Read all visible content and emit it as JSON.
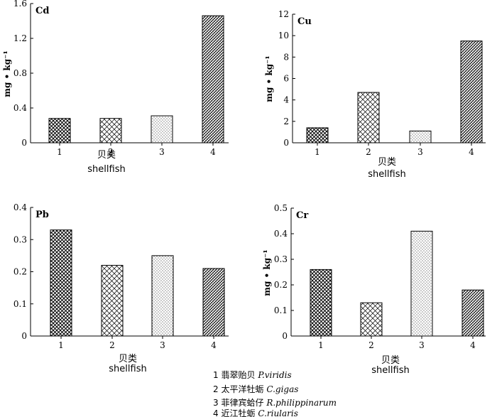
{
  "chart_data": [
    {
      "type": "bar",
      "panel_label": "Cd",
      "categories": [
        "1",
        "2",
        "3",
        "4"
      ],
      "values": [
        0.28,
        0.28,
        0.31,
        1.46
      ],
      "ylim": [
        0,
        1.6
      ],
      "yticks": [
        "0",
        "0.4",
        "0.8",
        "1.2",
        "1.6"
      ],
      "ylabel": "mg • kg⁻¹",
      "xlabel_zh": "贝类",
      "xlabel_en": "shellfish"
    },
    {
      "type": "bar",
      "panel_label": "Cu",
      "categories": [
        "1",
        "2",
        "3",
        "4"
      ],
      "values": [
        1.4,
        4.7,
        1.1,
        9.5
      ],
      "ylim": [
        0,
        12
      ],
      "yticks": [
        "0",
        "2",
        "4",
        "6",
        "8",
        "10",
        "12"
      ],
      "ylabel": "mg • kg⁻¹",
      "xlabel_zh": "贝类",
      "xlabel_en": "shellfish"
    },
    {
      "type": "bar",
      "panel_label": "Pb",
      "categories": [
        "1",
        "2",
        "3",
        "4"
      ],
      "values": [
        0.33,
        0.22,
        0.25,
        0.21
      ],
      "ylim": [
        0,
        0.4
      ],
      "yticks": [
        "0",
        "0.1",
        "0.2",
        "0.3",
        "0.4"
      ],
      "ylabel": "",
      "xlabel_zh": "贝类",
      "xlabel_en": "shellfish"
    },
    {
      "type": "bar",
      "panel_label": "Cr",
      "categories": [
        "1",
        "2",
        "3",
        "4"
      ],
      "values": [
        0.26,
        0.13,
        0.41,
        0.18
      ],
      "ylim": [
        0,
        0.5
      ],
      "yticks": [
        "0",
        "0.1",
        "0.2",
        "0.3",
        "0.4",
        "0.5"
      ],
      "ylabel": "mg • kg⁻¹",
      "xlabel_zh": "贝类",
      "xlabel_en": "shellfish"
    }
  ],
  "legend": [
    {
      "num": "1",
      "zh": "翡翠贻贝",
      "latin": "P.viridis"
    },
    {
      "num": "2",
      "zh": "太平洋牡蛎",
      "latin": "C.gigas"
    },
    {
      "num": "3",
      "zh": "菲律宾蛤仔",
      "latin": "R.philippinarum"
    },
    {
      "num": "4",
      "zh": "近江牡蛎",
      "latin": "C.riularis"
    }
  ],
  "colors": {
    "bar_fill": "#ffffff",
    "stroke": "#000000"
  },
  "bar_patterns": [
    "crosshatch-dense",
    "crosshatch-light",
    "dots",
    "diagonal-dense"
  ]
}
